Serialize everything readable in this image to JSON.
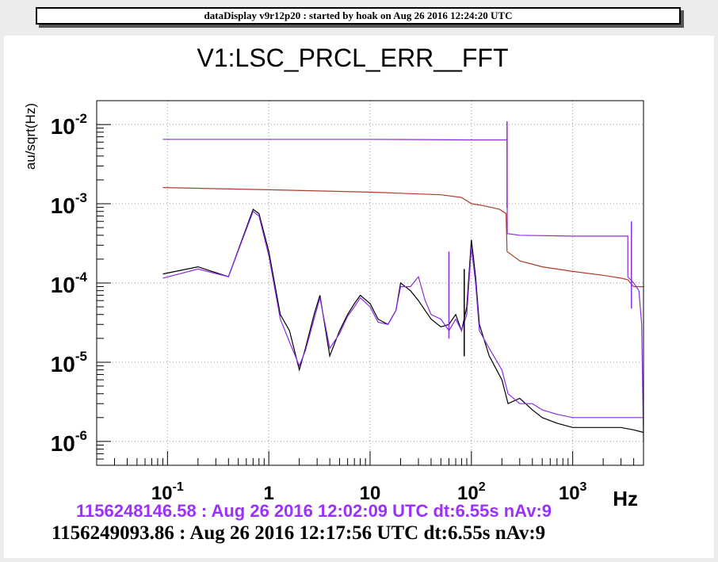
{
  "header": {
    "title": "dataDisplay v9r12p20 : started by hoak on Aug 26 2016 12:24:20 UTC"
  },
  "chart_data": {
    "type": "line",
    "title": "V1:LSC_PRCL_ERR__FFT",
    "ylabel": "au/sqrt(Hz)",
    "xlabel": "Hz",
    "x_scale": "log",
    "y_scale": "log",
    "xlim": [
      0.02,
      5000
    ],
    "ylim": [
      5e-07,
      0.02
    ],
    "grid": true,
    "x_ticks": [
      {
        "value": 0.1,
        "base": "10",
        "exp": "-1"
      },
      {
        "value": 1,
        "base": "1",
        "exp": ""
      },
      {
        "value": 10,
        "base": "10",
        "exp": ""
      },
      {
        "value": 100,
        "base": "10",
        "exp": "2"
      },
      {
        "value": 1000,
        "base": "10",
        "exp": "3"
      }
    ],
    "y_ticks": [
      {
        "value": 0.01,
        "base": "10",
        "exp": "-2"
      },
      {
        "value": 0.001,
        "base": "10",
        "exp": "-3"
      },
      {
        "value": 0.0001,
        "base": "10",
        "exp": "-4"
      },
      {
        "value": 1e-05,
        "base": "10",
        "exp": "-5"
      },
      {
        "value": 1e-06,
        "base": "10",
        "exp": "-6"
      }
    ],
    "series": [
      {
        "color": "#000000",
        "x": [
          0.09,
          0.2,
          0.4,
          0.7,
          0.8,
          1.0,
          1.3,
          1.6,
          2.0,
          2.3,
          2.8,
          3.2,
          4.0,
          5.0,
          6.0,
          7.0,
          8.0,
          10,
          12,
          15,
          18,
          20,
          25,
          30,
          35,
          40,
          50,
          60,
          70,
          80,
          90,
          100,
          110,
          120,
          150,
          200,
          230,
          300,
          400,
          500,
          700,
          1000,
          2000,
          3000,
          4000,
          5000
        ],
        "y": [
          0.00013,
          0.00016,
          0.00012,
          0.00085,
          0.00075,
          0.00025,
          4e-05,
          2.5e-05,
          8e-06,
          1.5e-05,
          4e-05,
          7e-05,
          1.2e-05,
          2.5e-05,
          4e-05,
          5.5e-05,
          7e-05,
          5.5e-05,
          3.5e-05,
          3e-05,
          4.5e-05,
          0.0001,
          8e-05,
          6e-05,
          4.5e-05,
          3.5e-05,
          2.8e-05,
          3e-05,
          4e-05,
          2.5e-05,
          5e-05,
          0.00035,
          0.00012,
          3e-05,
          1.2e-05,
          6e-06,
          3e-06,
          3.5e-06,
          2.5e-06,
          2e-06,
          1.7e-06,
          1.5e-06,
          1.5e-06,
          1.5e-06,
          1.4e-06,
          1.3e-06
        ]
      },
      {
        "color": "#8a2be2",
        "x": [
          0.09,
          0.2,
          0.4,
          0.7,
          0.8,
          1.0,
          1.3,
          1.6,
          2.0,
          2.3,
          2.8,
          3.2,
          4.0,
          5.0,
          6.0,
          7.0,
          8.0,
          10,
          12,
          15,
          18,
          20,
          25,
          30,
          35,
          40,
          50,
          60,
          70,
          80,
          90,
          100,
          110,
          120,
          150,
          200,
          230,
          300,
          400,
          500,
          700,
          1000,
          2000,
          3000,
          4000,
          5000
        ],
        "y": [
          0.000115,
          0.00015,
          0.00012,
          0.0008,
          0.0007,
          0.00022,
          3.5e-05,
          1.8e-05,
          9e-06,
          1.4e-05,
          3.5e-05,
          6.5e-05,
          1.5e-05,
          2.3e-05,
          3.8e-05,
          5e-05,
          6.5e-05,
          5e-05,
          3.2e-05,
          3e-05,
          4.5e-05,
          9e-05,
          9e-05,
          0.00012,
          6e-05,
          4e-05,
          3.5e-05,
          2.5e-05,
          3.5e-05,
          2.5e-05,
          4e-05,
          0.00028,
          0.0001,
          2.5e-05,
          1.5e-05,
          8e-06,
          4e-06,
          3e-06,
          3e-06,
          2.5e-06,
          2.2e-06,
          2e-06,
          2e-06,
          2e-06,
          2e-06,
          2e-06
        ]
      },
      {
        "color": "#b03a2e",
        "x": [
          0.09,
          1,
          10,
          50,
          80,
          100,
          130,
          190,
          220,
          225,
          300,
          500,
          1000,
          2000,
          3000,
          3500,
          4000,
          4500,
          5000
        ],
        "y": [
          0.0016,
          0.0015,
          0.0014,
          0.0013,
          0.0012,
          0.001,
          0.00095,
          0.00085,
          0.00075,
          0.00025,
          0.00019,
          0.00016,
          0.00014,
          0.000125,
          0.000115,
          0.00011,
          9e-05,
          9e-05,
          9e-05
        ]
      },
      {
        "color": "#8a2be2",
        "x": [
          0.09,
          1,
          10,
          100,
          200,
          225,
          226,
          300,
          1000,
          3500,
          3501,
          4000,
          4500,
          4800,
          5000
        ],
        "y": [
          0.0065,
          0.0065,
          0.0065,
          0.0064,
          0.0064,
          0.0064,
          0.00042,
          0.0004,
          0.00039,
          0.00039,
          0.00012,
          0.0001,
          8e-05,
          3e-05,
          1e-06
        ]
      }
    ],
    "spikes": [
      {
        "x": 225,
        "y": 0.011,
        "color": "#8a2be2"
      },
      {
        "x": 3800,
        "y": 0.0006,
        "color": "#8a2be2"
      },
      {
        "x": 60,
        "y": 0.00025,
        "color": "#8a2be2"
      },
      {
        "x": 85,
        "y": 0.00015,
        "color": "#000000"
      }
    ]
  },
  "footer": {
    "line1": "1156248146.58 : Aug 26 2016 12:02:09 UTC dt:6.55s nAv:9",
    "line1_color": "#9b30ff",
    "line2": "1156249093.86 : Aug 26 2016 12:17:56 UTC dt:6.55s nAv:9"
  }
}
